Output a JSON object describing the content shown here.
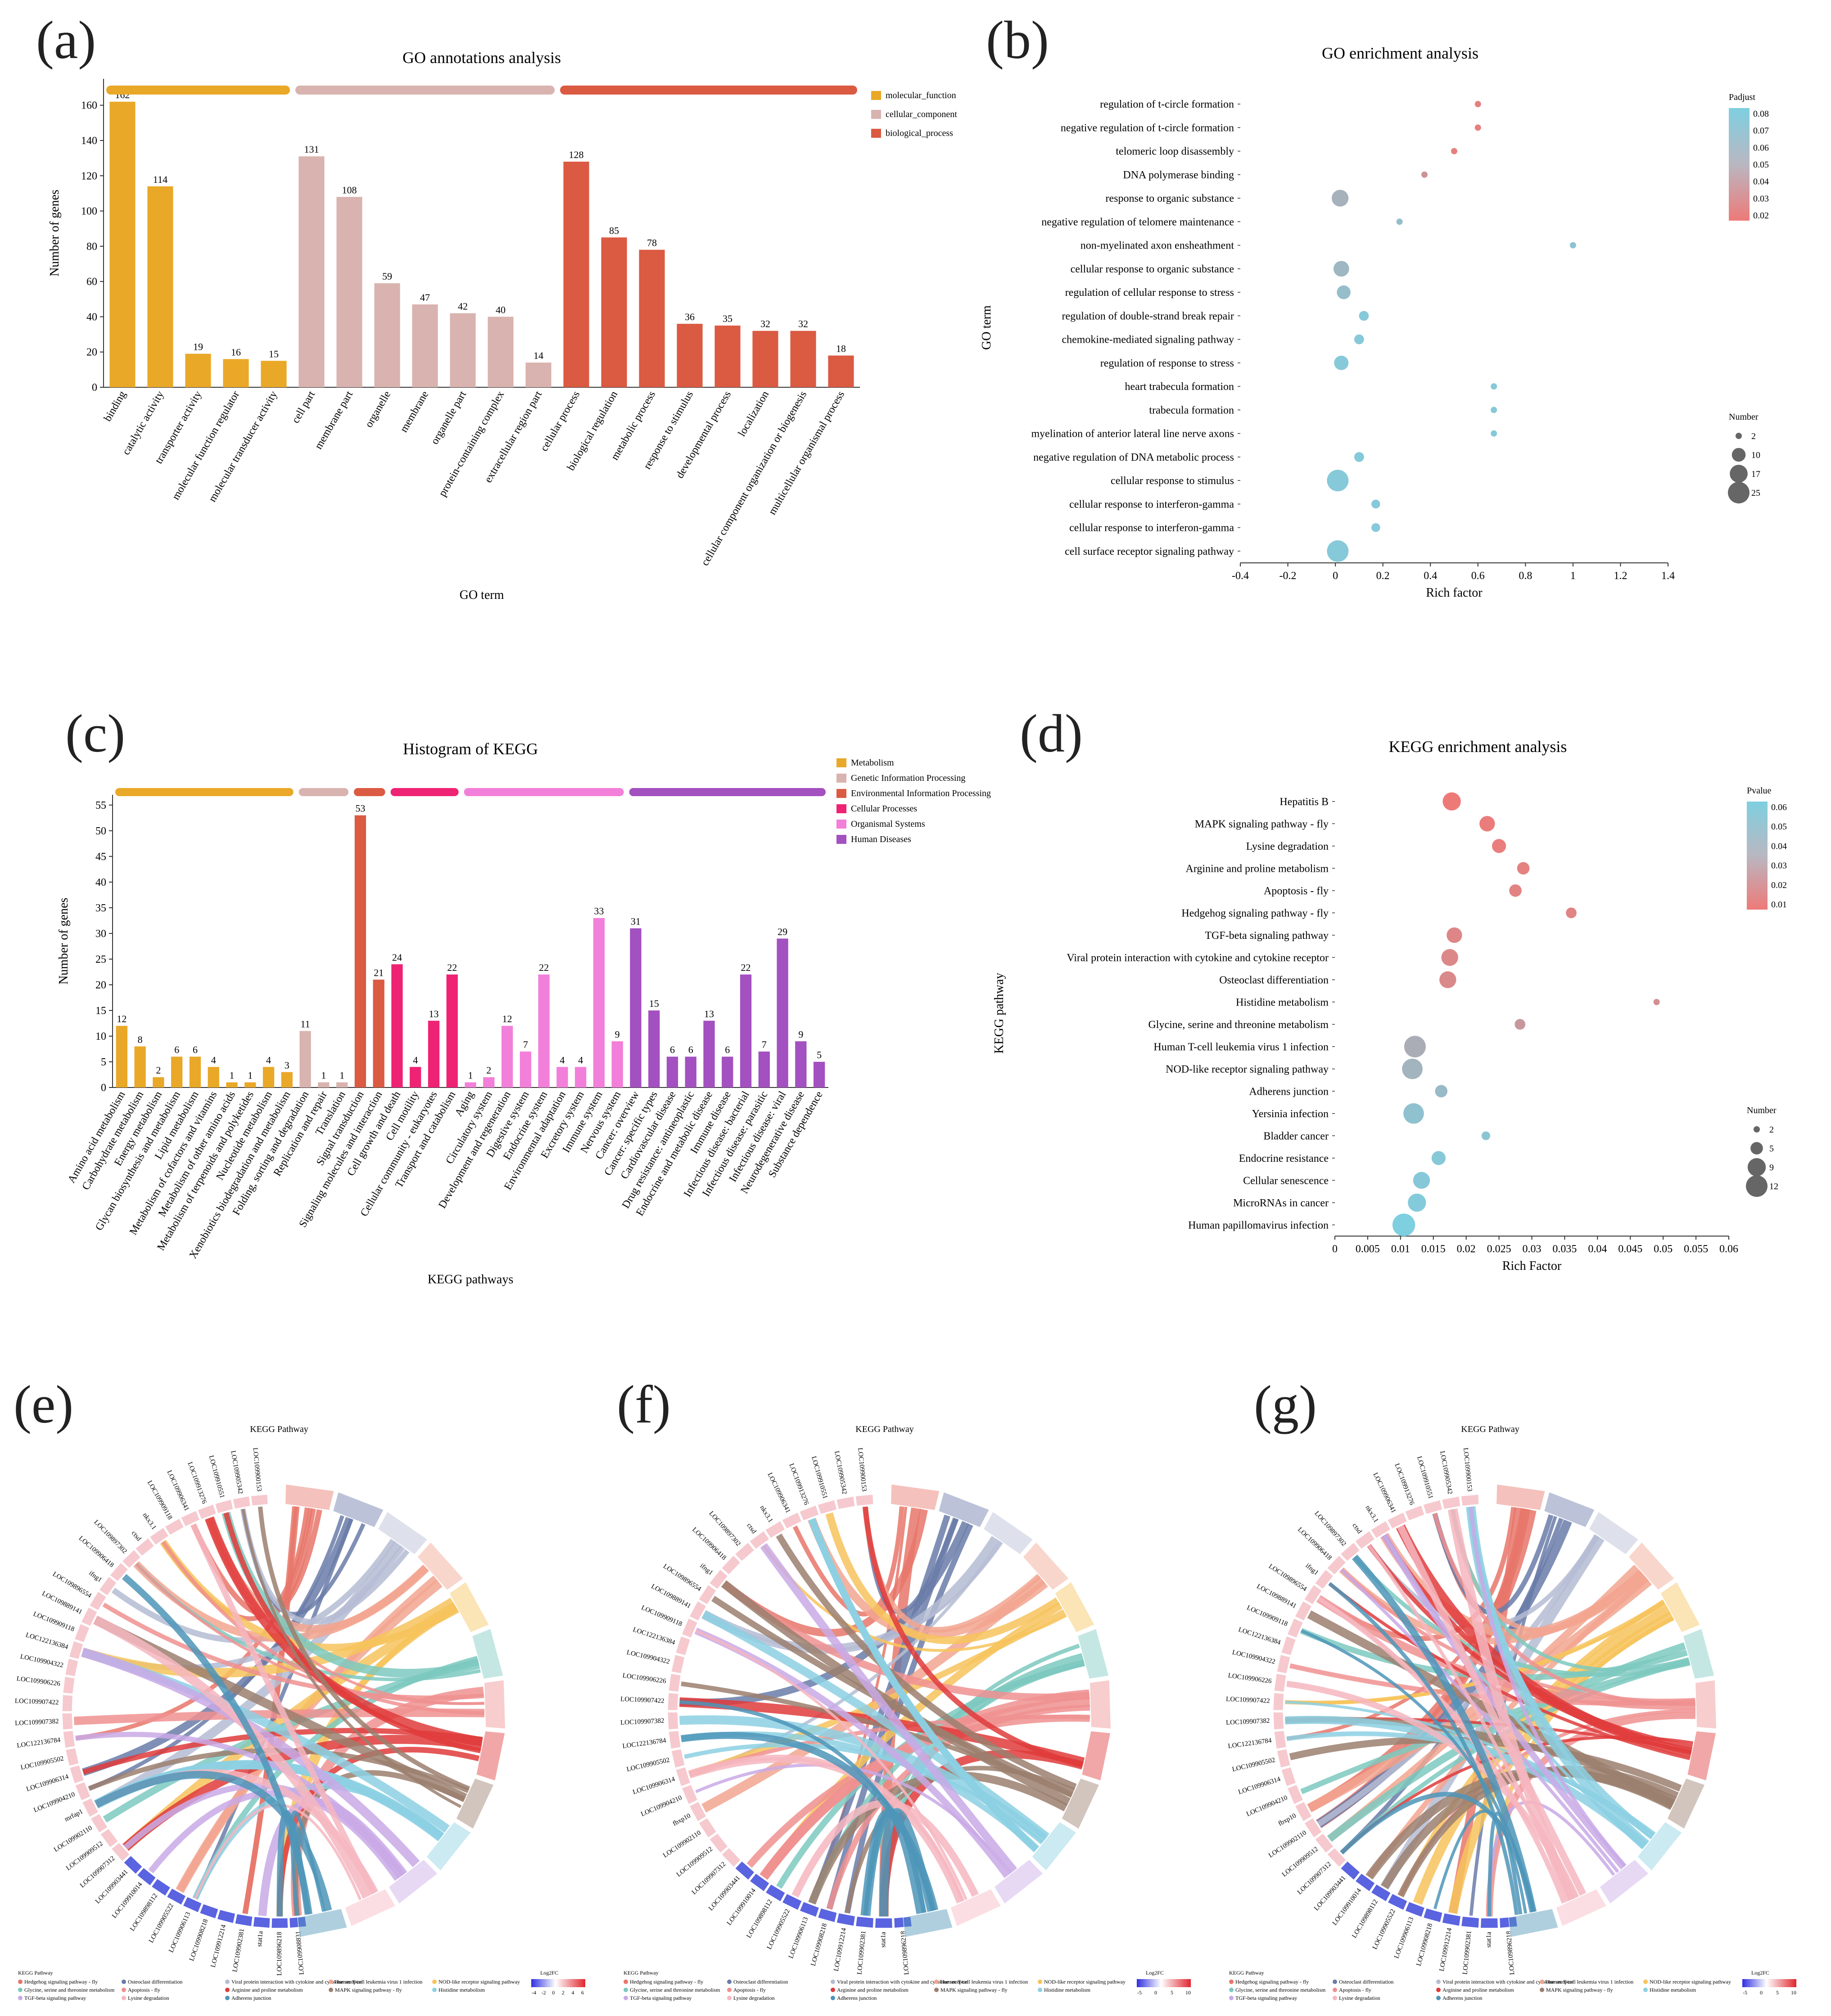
{
  "panels": {
    "a": "(a)",
    "b": "(b)",
    "c": "(c)",
    "d": "(d)",
    "e": "(e)",
    "f": "(f)",
    "g": "(g)"
  },
  "chart_data": [
    {
      "id": "a",
      "type": "bar",
      "title": "GO annotations analysis",
      "xlabel": "GO term",
      "ylabel": "Number of genes",
      "ylim": [
        0,
        175
      ],
      "yticks": [
        0,
        20,
        40,
        60,
        80,
        100,
        120,
        140,
        160
      ],
      "groups": [
        {
          "name": "molecular_function",
          "color": "#E9A827",
          "categories": [
            "binding",
            "catalytic activity",
            "transporter activity",
            "molecular function regulator",
            "molecular transducer activity"
          ],
          "values": [
            162,
            114,
            19,
            16,
            15
          ]
        },
        {
          "name": "cellular_component",
          "color": "#D9B3AF",
          "categories": [
            "cell part",
            "membrane part",
            "organelle",
            "membrane",
            "organelle part",
            "protein-containing complex",
            "extracellular region part"
          ],
          "values": [
            131,
            108,
            59,
            47,
            42,
            40,
            14
          ]
        },
        {
          "name": "biological_process",
          "color": "#DB5A42",
          "categories": [
            "cellular process",
            "biological regulation",
            "metabolic process",
            "response to stimulus",
            "developmental process",
            "localization",
            "cellular component organization or biogenesis",
            "multicellular organismal process"
          ],
          "values": [
            128,
            85,
            78,
            36,
            35,
            32,
            32,
            18
          ]
        }
      ],
      "legend_position": "right"
    },
    {
      "id": "b",
      "type": "scatter",
      "title": "GO enrichment analysis",
      "xlabel": "Rich factor",
      "ylabel": "GO term",
      "xlim": [
        -0.4,
        1.4
      ],
      "xticks": [
        "-0.4",
        "-0.2",
        "0",
        "0.2",
        "0.4",
        "0.6",
        "0.8",
        "1",
        "1.2",
        "1.4"
      ],
      "color_legend": {
        "title": "Padjust",
        "ticks": [
          "0.08",
          "0.07",
          "0.06",
          "0.05",
          "0.04",
          "0.03",
          "0.02"
        ],
        "min": 0.015,
        "max": 0.085,
        "low_color": "#EE7A78",
        "high_color": "#7ECFE0"
      },
      "size_legend": {
        "title": "Number",
        "ticks": [
          2,
          10,
          17,
          25
        ]
      },
      "points": [
        {
          "term": "regulation of t-circle formation",
          "x": 0.6,
          "size": 2,
          "p": 0.02
        },
        {
          "term": "negative regulation of t-circle formation",
          "x": 0.6,
          "size": 2,
          "p": 0.02
        },
        {
          "term": "telomeric loop disassembly",
          "x": 0.5,
          "size": 2,
          "p": 0.02
        },
        {
          "term": "DNA polymerase binding",
          "x": 0.375,
          "size": 2,
          "p": 0.035
        },
        {
          "term": "response to organic substance",
          "x": 0.02,
          "size": 15,
          "p": 0.06
        },
        {
          "term": "negative regulation of telomere maintenance",
          "x": 0.27,
          "size": 2,
          "p": 0.07
        },
        {
          "term": "non-myelinated axon ensheathment",
          "x": 1.0,
          "size": 2,
          "p": 0.075
        },
        {
          "term": "cellular response to organic substance",
          "x": 0.025,
          "size": 13,
          "p": 0.065
        },
        {
          "term": "regulation of cellular response to stress",
          "x": 0.035,
          "size": 10,
          "p": 0.07
        },
        {
          "term": "regulation of double-strand break repair",
          "x": 0.12,
          "size": 5,
          "p": 0.08
        },
        {
          "term": "chemokine-mediated signaling pathway",
          "x": 0.1,
          "size": 5,
          "p": 0.08
        },
        {
          "term": "regulation of response to stress",
          "x": 0.025,
          "size": 11,
          "p": 0.08
        },
        {
          "term": "heart trabecula formation",
          "x": 0.667,
          "size": 2,
          "p": 0.08
        },
        {
          "term": "trabecula formation",
          "x": 0.667,
          "size": 2,
          "p": 0.08
        },
        {
          "term": "myelination of anterior lateral line nerve axons",
          "x": 0.667,
          "size": 2,
          "p": 0.08
        },
        {
          "term": "negative regulation of DNA metabolic process",
          "x": 0.1,
          "size": 5,
          "p": 0.08
        },
        {
          "term": "cellular response to stimulus",
          "x": 0.01,
          "size": 25,
          "p": 0.08
        },
        {
          "term": "cellular response to interferon-gamma",
          "x": 0.17,
          "size": 4,
          "p": 0.08
        },
        {
          "term": "cellular response to interferon-gamma",
          "x": 0.17,
          "size": 4,
          "p": 0.08
        },
        {
          "term": "cell surface receptor signaling pathway",
          "x": 0.01,
          "size": 25,
          "p": 0.08
        }
      ]
    },
    {
      "id": "c",
      "type": "bar",
      "title": "Histogram of KEGG",
      "xlabel": "KEGG pathways",
      "ylabel": "Number of genes",
      "ylim": [
        0,
        57
      ],
      "yticks": [
        0,
        5,
        10,
        15,
        20,
        25,
        30,
        35,
        40,
        45,
        50,
        55
      ],
      "groups": [
        {
          "name": "Metabolism",
          "color": "#E9A827",
          "categories": [
            "Amino acid metabolism",
            "Carbohydrate metabolism",
            "Energy metabolism",
            "Glycan biosynthesis and metabolism",
            "Lipid metabolism",
            "Metabolism of cofactors and vitamins",
            "Metabolism of other amino acids",
            "Metabolism of terpenoids and polyketides",
            "Nucleotide metabolism",
            "Xenobiotics biodegradation and metabolism"
          ],
          "values": [
            12,
            8,
            2,
            6,
            6,
            4,
            1,
            1,
            4,
            3
          ]
        },
        {
          "name": "Genetic Information Processing",
          "color": "#D9B3AF",
          "categories": [
            "Folding, sorting and degradation",
            "Replication and repair",
            "Translation"
          ],
          "values": [
            11,
            1,
            1
          ]
        },
        {
          "name": "Environmental Information Processing",
          "color": "#DB5A42",
          "categories": [
            "Signal transduction",
            "Signaling molecules and interaction"
          ],
          "values": [
            53,
            21
          ]
        },
        {
          "name": "Cellular Processes",
          "color": "#EE2373",
          "categories": [
            "Cell growth and death",
            "Cell motility",
            "Cellular community - eukaryotes",
            "Transport and catabolism"
          ],
          "values": [
            24,
            4,
            13,
            22
          ]
        },
        {
          "name": "Organismal Systems",
          "color": "#F27FD9",
          "categories": [
            "Aging",
            "Circulatory system",
            "Development and regeneration",
            "Digestive system",
            "Endocrine system",
            "Environmental adaptation",
            "Excretory system",
            "Immune system",
            "Nervous system"
          ],
          "values": [
            1,
            2,
            12,
            7,
            22,
            4,
            4,
            33,
            9
          ]
        },
        {
          "name": "Human Diseases",
          "color": "#A350C0",
          "categories": [
            "Cancer: overview",
            "Cancer: specific types",
            "Cardiovascular disease",
            "Drug resistance: antineoplastic",
            "Endocrine and metabolic disease",
            "Immune disease",
            "Infectious disease: bacterial",
            "Infectious disease: parasitic",
            "Infectious disease: viral",
            "Neurodegenerative disease",
            "Substance dependence"
          ],
          "values": [
            31,
            15,
            6,
            6,
            13,
            6,
            22,
            7,
            29,
            9,
            5
          ]
        }
      ],
      "legend_position": "right"
    },
    {
      "id": "d",
      "type": "scatter",
      "title": "KEGG enrichment analysis",
      "xlabel": "Rich Factor",
      "ylabel": "KEGG pathway",
      "xlim": [
        0,
        0.06
      ],
      "xticks": [
        "0",
        "0.005",
        "0.01",
        "0.015",
        "0.02",
        "0.025",
        "0.03",
        "0.035",
        "0.04",
        "0.045",
        "0.05",
        "0.055",
        "0.06"
      ],
      "color_legend": {
        "title": "Pvalue",
        "ticks": [
          "0.06",
          "0.05",
          "0.04",
          "0.03",
          "0.02",
          "0.01"
        ],
        "min": 0.003,
        "max": 0.065,
        "low_color": "#EE7A78",
        "high_color": "#7ECFE0"
      },
      "size_legend": {
        "title": "Number",
        "ticks": [
          2,
          5,
          9,
          12
        ]
      },
      "points": [
        {
          "term": "Hepatitis B",
          "x": 0.0178,
          "size": 9,
          "p": 0.003
        },
        {
          "term": "MAPK signaling pathway - fly",
          "x": 0.0232,
          "size": 7,
          "p": 0.005
        },
        {
          "term": "Lysine degradation",
          "x": 0.025,
          "size": 6,
          "p": 0.006
        },
        {
          "term": "Arginine and proline metabolism",
          "x": 0.0287,
          "size": 5,
          "p": 0.008
        },
        {
          "term": "Apoptosis - fly",
          "x": 0.0275,
          "size": 5,
          "p": 0.009
        },
        {
          "term": "Hedgehog signaling pathway - fly",
          "x": 0.036,
          "size": 4,
          "p": 0.01
        },
        {
          "term": "TGF-beta signaling pathway",
          "x": 0.0182,
          "size": 7,
          "p": 0.012
        },
        {
          "term": "Viral protein interaction with cytokine and cytokine receptor",
          "x": 0.0175,
          "size": 8,
          "p": 0.013
        },
        {
          "term": "Osteoclast differentiation",
          "x": 0.0172,
          "size": 8,
          "p": 0.014
        },
        {
          "term": "Histidine metabolism",
          "x": 0.049,
          "size": 2,
          "p": 0.018
        },
        {
          "term": "Glycine, serine and threonine metabolism",
          "x": 0.0282,
          "size": 4,
          "p": 0.025
        },
        {
          "term": "Human T-cell leukemia virus 1 infection",
          "x": 0.0122,
          "size": 12,
          "p": 0.04
        },
        {
          "term": "NOD-like receptor signaling pathway",
          "x": 0.0118,
          "size": 11,
          "p": 0.045
        },
        {
          "term": "Adherens junction",
          "x": 0.0162,
          "size": 5,
          "p": 0.05
        },
        {
          "term": "Yersinia infection",
          "x": 0.012,
          "size": 11,
          "p": 0.055
        },
        {
          "term": "Bladder cancer",
          "x": 0.023,
          "size": 3,
          "p": 0.058
        },
        {
          "term": "Endocrine resistance",
          "x": 0.0158,
          "size": 6,
          "p": 0.06
        },
        {
          "term": "Cellular senescence",
          "x": 0.0132,
          "size": 8,
          "p": 0.06
        },
        {
          "term": "MicroRNAs in cancer",
          "x": 0.0125,
          "size": 9,
          "p": 0.062
        },
        {
          "term": "Human papillomavirus infection",
          "x": 0.0105,
          "size": 13,
          "p": 0.065
        }
      ]
    }
  ],
  "chords": {
    "title": "KEGG Pathway",
    "legend_title": "KEGG Pathway",
    "logfc_title": "Log2FC",
    "panel_e": {
      "logfc_ticks": [
        "-4",
        "-2",
        "0",
        "2",
        "4",
        "6"
      ],
      "genes": [
        "LOC109900153",
        "LOC109905342",
        "LOC109910551",
        "LOC109913276",
        "LOC109906341",
        "LOC109909118",
        "nkx3.1",
        "ctsd",
        "LOC109897302",
        "LOC109906418",
        "ifng1",
        "LOC109896554",
        "LOC109889141",
        "LOC109909118",
        "LOC122136384",
        "LOC109904322",
        "LOC109906226",
        "LOC109907422",
        "LOC109907382",
        "LOC122136784",
        "LOC109905502",
        "LOC109906314",
        "LOC109904210",
        "mrfap1",
        "LOC109902110",
        "LOC109909512",
        "LOC109907312",
        "LOC109903441",
        "LOC109910014",
        "LOC109898112",
        "LOC109905522",
        "LOC109906113",
        "LOC109908218",
        "LOC109912214",
        "LOC109902381",
        "stat1a",
        "LOC109896218",
        "LOC109908831"
      ]
    },
    "panel_f": {
      "logfc_ticks": [
        "-5",
        "0",
        "5",
        "10"
      ],
      "genes": [
        "LOC109900153",
        "LOC109905342",
        "LOC109910551",
        "LOC109913276",
        "LOC109906341",
        "nkx3.1",
        "ctsd",
        "LOC109897302",
        "LOC109906418",
        "ifng1",
        "LOC109896554",
        "LOC109889141",
        "LOC109909118",
        "LOC122136384",
        "LOC109904322",
        "LOC109906226",
        "LOC109907422",
        "LOC109907382",
        "LOC122136784",
        "LOC109905502",
        "LOC109906314",
        "LOC109904210",
        "fbxp10",
        "LOC109902110",
        "LOC109909512",
        "LOC109907312",
        "LOC109903441",
        "LOC109910014",
        "LOC109898112",
        "LOC109905522",
        "LOC109906113",
        "LOC109908218",
        "LOC109912214",
        "LOC109902381",
        "stat1a",
        "LOC109896218"
      ]
    },
    "panel_g": {
      "logfc_ticks": [
        "-5",
        "0",
        "5",
        "10"
      ],
      "genes": [
        "LOC109900153",
        "LOC109905342",
        "LOC109910551",
        "LOC109913276",
        "LOC109906341",
        "nkx3.1",
        "ctsd",
        "LOC109897302",
        "LOC109906418",
        "ifng1",
        "LOC109896554",
        "LOC109889141",
        "LOC109909118",
        "LOC122136384",
        "LOC109904322",
        "LOC109906226",
        "LOC109907422",
        "LOC109907382",
        "LOC122136784",
        "LOC109905502",
        "LOC109906314",
        "LOC109904210",
        "fbxp10",
        "LOC109902110",
        "LOC109909512",
        "LOC109907312",
        "LOC109903441",
        "LOC109910014",
        "LOC109898112",
        "LOC109905522",
        "LOC109906113",
        "LOC109908218",
        "LOC109912214",
        "LOC109902381",
        "stat1a",
        "LOC109896218"
      ]
    },
    "pathways": [
      {
        "name": "Hedgehog signaling pathway - fly",
        "color": "#E8756A"
      },
      {
        "name": "Osteoclast differentiation",
        "color": "#6A7BA8"
      },
      {
        "name": "Viral protein interaction with cytokine and cytokine receptor",
        "color": "#B5BCD3"
      },
      {
        "name": "Human T-cell leukemia virus 1 infection",
        "color": "#F2A58F"
      },
      {
        "name": "NOD-like receptor signaling pathway",
        "color": "#F7C35C"
      },
      {
        "name": "Glycine, serine and threonine metabolism",
        "color": "#7CC9C0"
      },
      {
        "name": "Apoptosis - fly",
        "color": "#F09090"
      },
      {
        "name": "Arginine and proline metabolism",
        "color": "#E03B3B"
      },
      {
        "name": "MAPK signaling pathway - fly",
        "color": "#9B7F6E"
      },
      {
        "name": "Histidine metabolism",
        "color": "#8CD0E3"
      },
      {
        "name": "TGF-beta signaling pathway",
        "color": "#C9A9E6"
      },
      {
        "name": "Lysine degradation",
        "color": "#F6B6C0"
      },
      {
        "name": "Adherens junction",
        "color": "#4E95B8"
      }
    ]
  }
}
